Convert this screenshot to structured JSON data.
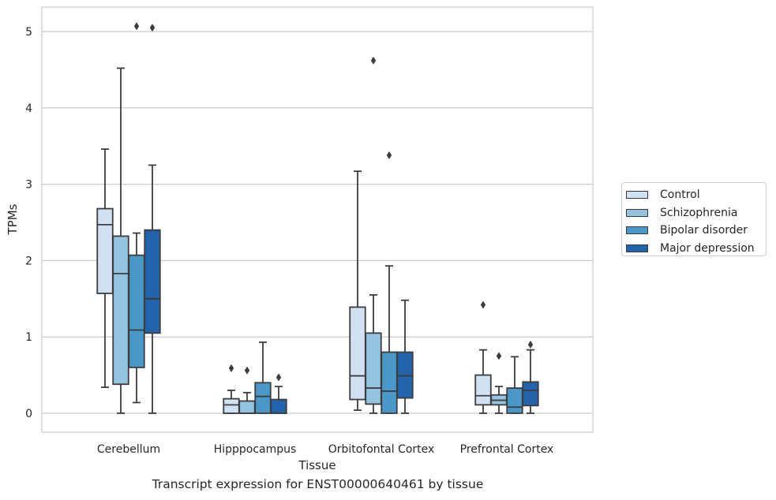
{
  "chart_data": {
    "type": "box",
    "caption": "Transcript expression for ENST00000640461 by tissue",
    "xlabel": "Tissue",
    "ylabel": "TPMs",
    "ylim": [
      -0.25,
      5.3
    ],
    "yticks": [
      0,
      1,
      2,
      3,
      4,
      5
    ],
    "grid": true,
    "legend_position": "right",
    "categories": [
      "Cerebellum",
      "Hipppocampus",
      "Orbitofontal Cortex",
      "Prefrontal Cortex"
    ],
    "series": [
      {
        "name": "Control",
        "color": "#d0e1f2",
        "boxes": [
          {
            "whislo": 0.34,
            "q1": 1.57,
            "med": 2.47,
            "q3": 2.68,
            "whishi": 3.46,
            "fliers": []
          },
          {
            "whislo": 0.0,
            "q1": 0.0,
            "med": 0.11,
            "q3": 0.19,
            "whishi": 0.3,
            "fliers": [
              0.59
            ]
          },
          {
            "whislo": 0.04,
            "q1": 0.18,
            "med": 0.49,
            "q3": 1.39,
            "whishi": 3.17,
            "fliers": []
          },
          {
            "whislo": 0.0,
            "q1": 0.11,
            "med": 0.23,
            "q3": 0.5,
            "whishi": 0.83,
            "fliers": [
              1.42
            ]
          }
        ]
      },
      {
        "name": "Schizophrenia",
        "color": "#94c4df",
        "boxes": [
          {
            "whislo": 0.0,
            "q1": 0.38,
            "med": 1.83,
            "q3": 2.32,
            "whishi": 4.52,
            "fliers": []
          },
          {
            "whislo": 0.0,
            "q1": 0.0,
            "med": 0.0,
            "q3": 0.16,
            "whishi": 0.27,
            "fliers": [
              0.56
            ]
          },
          {
            "whislo": 0.0,
            "q1": 0.12,
            "med": 0.33,
            "q3": 1.05,
            "whishi": 1.55,
            "fliers": [
              4.62
            ]
          },
          {
            "whislo": 0.0,
            "q1": 0.11,
            "med": 0.17,
            "q3": 0.24,
            "whishi": 0.35,
            "fliers": [
              0.75
            ]
          }
        ]
      },
      {
        "name": "Bipolar disorder",
        "color": "#4a98c9",
        "boxes": [
          {
            "whislo": 0.14,
            "q1": 0.6,
            "med": 1.09,
            "q3": 2.07,
            "whishi": 2.36,
            "fliers": [
              5.07
            ]
          },
          {
            "whislo": 0.0,
            "q1": 0.0,
            "med": 0.22,
            "q3": 0.4,
            "whishi": 0.93,
            "fliers": []
          },
          {
            "whislo": 0.0,
            "q1": 0.0,
            "med": 0.29,
            "q3": 0.8,
            "whishi": 1.93,
            "fliers": [
              3.38
            ]
          },
          {
            "whislo": 0.0,
            "q1": 0.0,
            "med": 0.08,
            "q3": 0.33,
            "whishi": 0.74,
            "fliers": []
          }
        ]
      },
      {
        "name": "Major depression",
        "color": "#2164ab",
        "boxes": [
          {
            "whislo": 0.0,
            "q1": 1.05,
            "med": 1.5,
            "q3": 2.4,
            "whishi": 3.25,
            "fliers": [
              5.05
            ]
          },
          {
            "whislo": 0.0,
            "q1": 0.0,
            "med": 0.0,
            "q3": 0.18,
            "whishi": 0.35,
            "fliers": [
              0.47
            ]
          },
          {
            "whislo": 0.0,
            "q1": 0.2,
            "med": 0.49,
            "q3": 0.8,
            "whishi": 1.48,
            "fliers": []
          },
          {
            "whislo": 0.0,
            "q1": 0.1,
            "med": 0.3,
            "q3": 0.41,
            "whishi": 0.83,
            "fliers": [
              0.9
            ]
          }
        ]
      }
    ]
  }
}
